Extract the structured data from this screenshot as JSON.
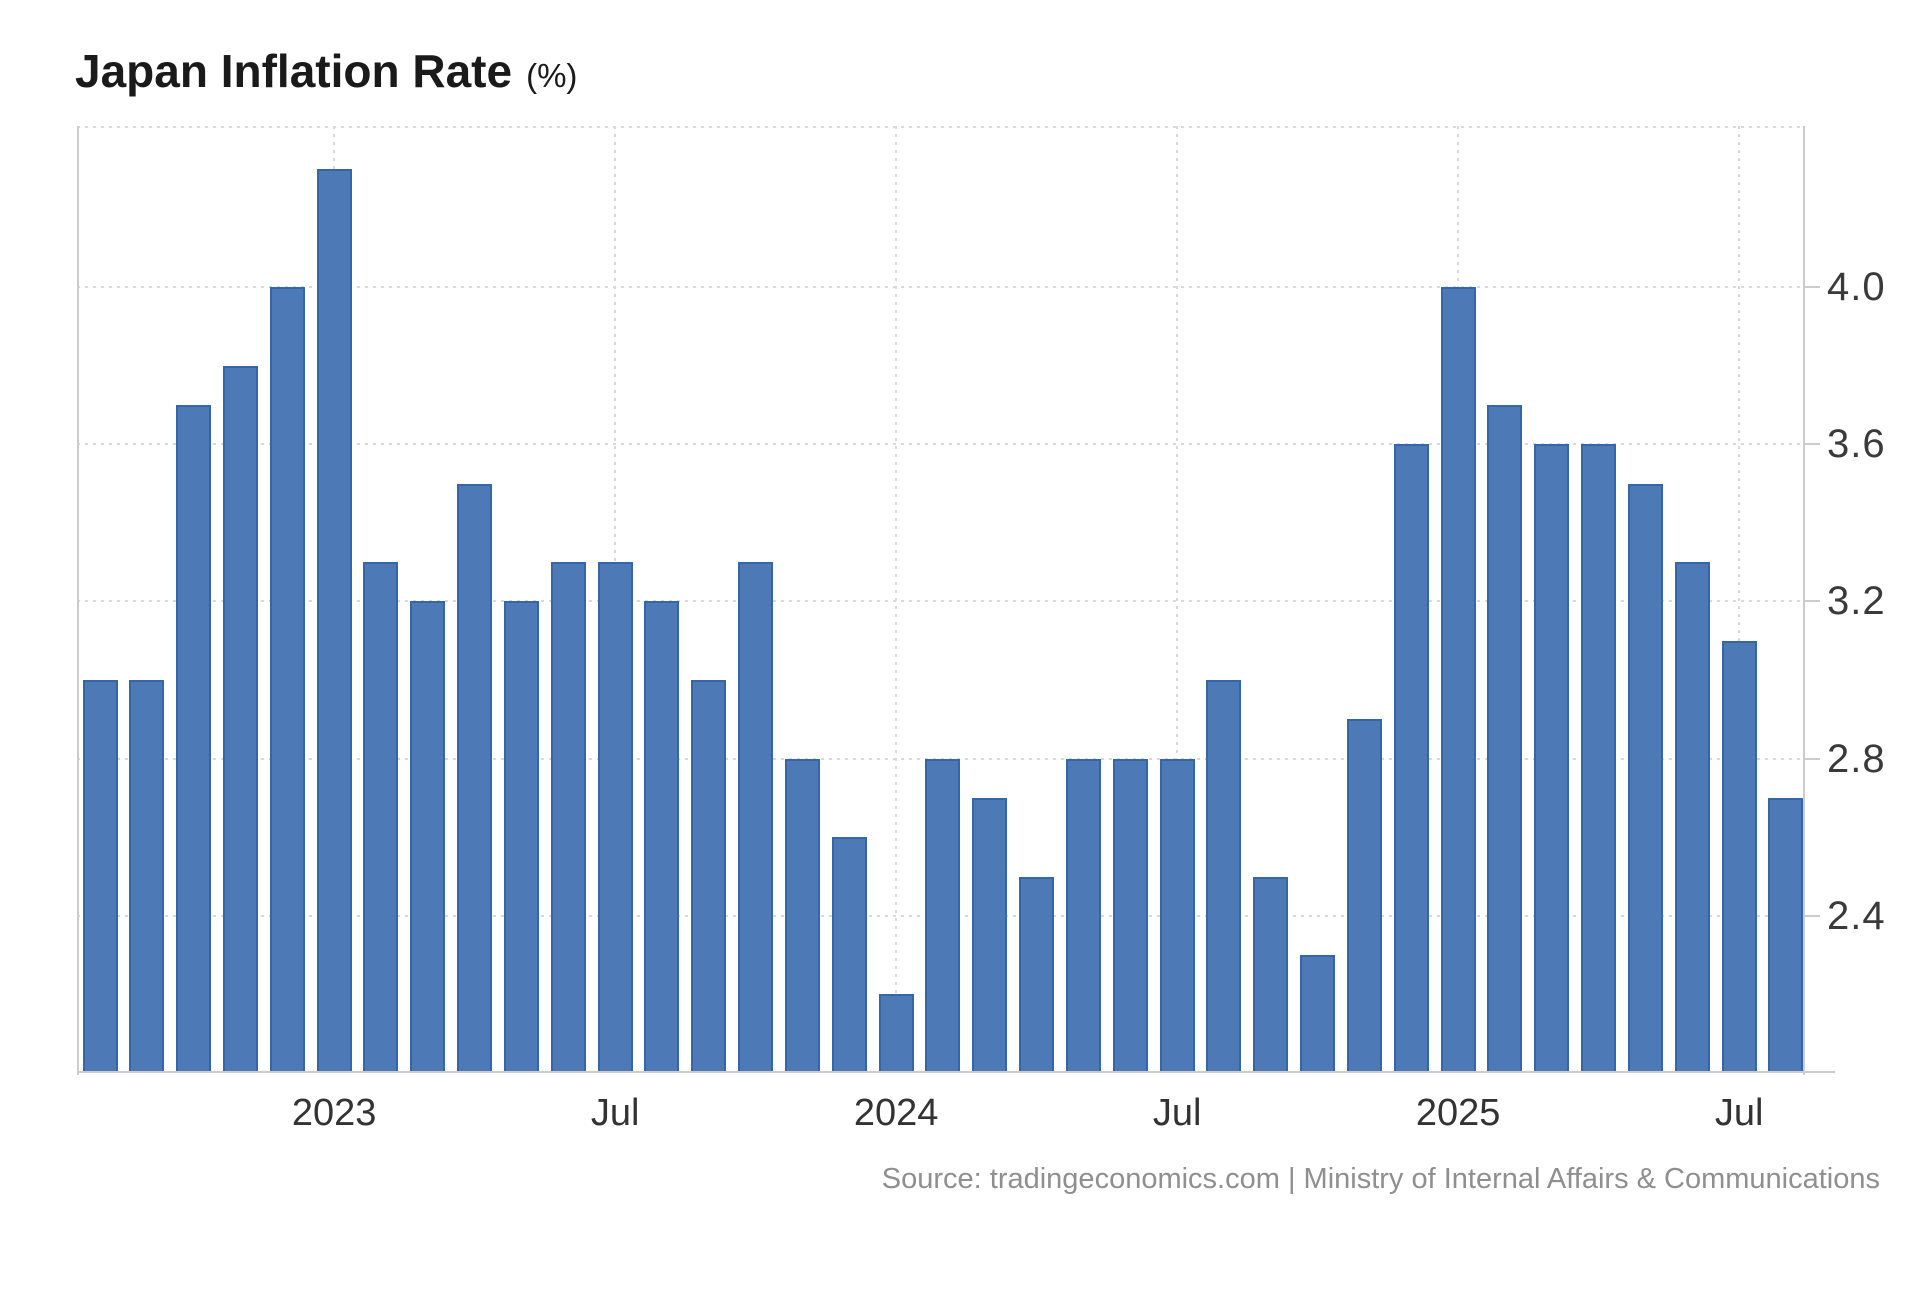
{
  "title": {
    "text": "Japan Inflation Rate",
    "unit": "(%)"
  },
  "source": "Source: tradingeconomics.com | Ministry of Internal Affairs & Communications",
  "chart_data": {
    "type": "bar",
    "title": "Japan Inflation Rate (%)",
    "ylabel": "",
    "xlabel": "",
    "categories": [
      "2022-08",
      "2022-09",
      "2022-10",
      "2022-11",
      "2022-12",
      "2023-01",
      "2023-02",
      "2023-03",
      "2023-04",
      "2023-05",
      "2023-06",
      "2023-07",
      "2023-08",
      "2023-09",
      "2023-10",
      "2023-11",
      "2023-12",
      "2024-01",
      "2024-02",
      "2024-03",
      "2024-04",
      "2024-05",
      "2024-06",
      "2024-07",
      "2024-08",
      "2024-09",
      "2024-10",
      "2024-11",
      "2024-12",
      "2025-01",
      "2025-02",
      "2025-03",
      "2025-04",
      "2025-05",
      "2025-06",
      "2025-07",
      "2025-08"
    ],
    "values": [
      3.0,
      3.0,
      3.7,
      3.8,
      4.0,
      4.3,
      3.3,
      3.2,
      3.5,
      3.2,
      3.3,
      3.3,
      3.2,
      3.0,
      3.3,
      2.8,
      2.6,
      2.2,
      2.8,
      2.7,
      2.5,
      2.8,
      2.8,
      2.8,
      3.0,
      2.5,
      2.3,
      2.9,
      3.6,
      4.0,
      3.7,
      3.6,
      3.6,
      3.5,
      3.3,
      3.1,
      2.7
    ],
    "ylim": [
      2.0,
      4.41
    ],
    "yticks": [
      4.0,
      3.6,
      3.2,
      2.8,
      2.4
    ],
    "xticks": [
      {
        "index": 5,
        "label": "2023"
      },
      {
        "index": 11,
        "label": "Jul"
      },
      {
        "index": 17,
        "label": "2024"
      },
      {
        "index": 23,
        "label": "Jul"
      },
      {
        "index": 29,
        "label": "2025"
      },
      {
        "index": 35,
        "label": "Jul"
      }
    ],
    "grid": true,
    "legend": false,
    "colors": {
      "bar_fill": "#4d7ab7",
      "bar_border": "#3566a9",
      "grid": "#d9d9d9",
      "axis_border": "#cccccc"
    }
  }
}
